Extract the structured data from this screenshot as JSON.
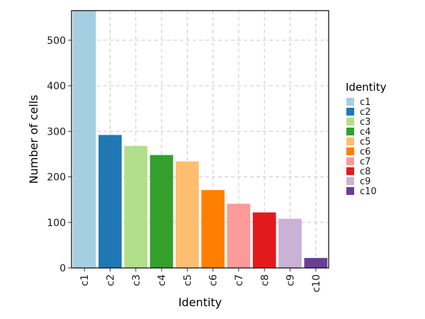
{
  "chart_data": {
    "type": "bar",
    "xlabel": "Identity",
    "ylabel": "Number of cells",
    "categories": [
      "c1",
      "c2",
      "c3",
      "c4",
      "c5",
      "c6",
      "c7",
      "c8",
      "c9",
      "c10"
    ],
    "values": [
      565,
      292,
      268,
      248,
      234,
      171,
      141,
      122,
      108,
      22
    ],
    "colors": [
      "#a6cee3",
      "#1f78b4",
      "#b2df8a",
      "#33a02c",
      "#fdbf6f",
      "#ff7f00",
      "#fb9a99",
      "#e31a1c",
      "#cab2d6",
      "#6a3d9a"
    ],
    "ylim": [
      0,
      565
    ],
    "yticks": [
      0,
      100,
      200,
      300,
      400,
      500
    ],
    "grid": true,
    "legend": {
      "title": "Identity",
      "placement": "right",
      "entries": [
        "c1",
        "c2",
        "c3",
        "c4",
        "c5",
        "c6",
        "c7",
        "c8",
        "c9",
        "c10"
      ]
    }
  }
}
